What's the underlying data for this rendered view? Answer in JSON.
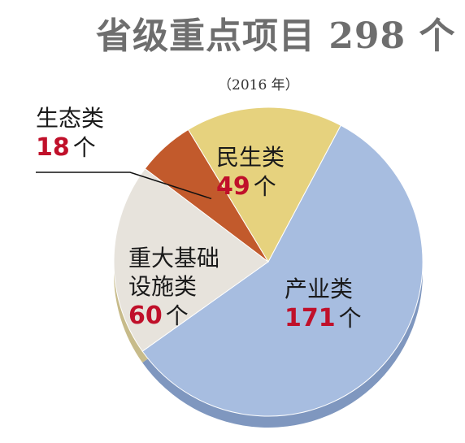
{
  "title": "省级重点项目 298 个",
  "subtitle": "（2016 年）",
  "unit": "个",
  "chart_data": {
    "type": "pie",
    "title": "省级重点项目 298 个",
    "subtitle": "（2016 年）",
    "total": 298,
    "slices": [
      {
        "label": "产业类",
        "value": 171,
        "color": "#a7bde0",
        "edge": "#7f97bf"
      },
      {
        "label": "重大基础设施类",
        "label_lines": [
          "重大基础",
          "设施类"
        ],
        "value": 60,
        "color": "#e7e3dc",
        "edge": "#c7bb8a"
      },
      {
        "label": "生态类",
        "value": 18,
        "color": "#c25a2c",
        "edge": "#8f3d18"
      },
      {
        "label": "民生类",
        "value": 49,
        "color": "#e6d27e",
        "edge": "#bfa955"
      }
    ]
  }
}
